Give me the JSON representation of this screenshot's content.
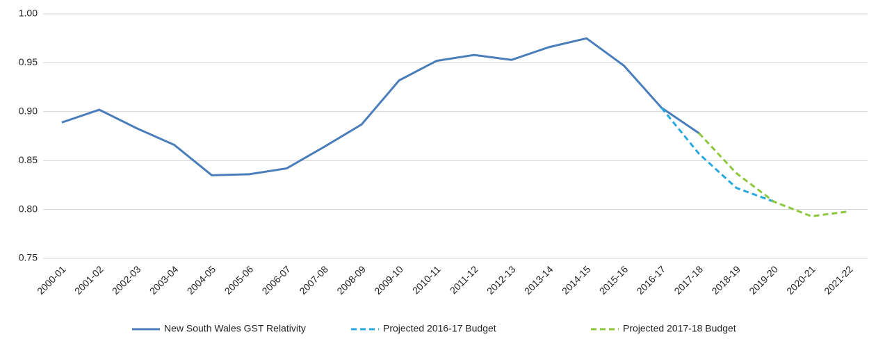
{
  "chart_data": {
    "type": "line",
    "categories": [
      "2000-01",
      "2001-02",
      "2002-03",
      "2003-04",
      "2004-05",
      "2005-06",
      "2006-07",
      "2007-08",
      "2008-09",
      "2009-10",
      "2010-11",
      "2011-12",
      "2012-13",
      "2013-14",
      "2014-15",
      "2015-16",
      "2016-17",
      "2017-18",
      "2018-19",
      "2019-20",
      "2020-21",
      "2021-22"
    ],
    "series": [
      {
        "name": "New South Wales GST Relativity",
        "color": "#4a7ebb",
        "dashed": false,
        "values": [
          0.889,
          0.902,
          0.883,
          0.866,
          0.835,
          0.836,
          0.842,
          0.864,
          0.887,
          0.932,
          0.952,
          0.958,
          0.953,
          0.966,
          0.975,
          0.947,
          0.904,
          0.878,
          null,
          null,
          null,
          null
        ]
      },
      {
        "name": "Projected 2016-17 Budget",
        "color": "#29a8e0",
        "dashed": true,
        "values": [
          null,
          null,
          null,
          null,
          null,
          null,
          null,
          null,
          null,
          null,
          null,
          null,
          null,
          null,
          null,
          null,
          0.904,
          0.857,
          0.822,
          0.808,
          null,
          null
        ]
      },
      {
        "name": "Projected 2017-18 Budget",
        "color": "#8dc63f",
        "dashed": true,
        "values": [
          null,
          null,
          null,
          null,
          null,
          null,
          null,
          null,
          null,
          null,
          null,
          null,
          null,
          null,
          null,
          null,
          null,
          0.878,
          0.837,
          0.808,
          0.793,
          0.798
        ]
      }
    ],
    "ylim": [
      0.75,
      1.0
    ],
    "yticks": [
      {
        "value": 0.75,
        "label": "0.75"
      },
      {
        "value": 0.8,
        "label": "0.80"
      },
      {
        "value": 0.85,
        "label": "0.85"
      },
      {
        "value": 0.9,
        "label": "0.90"
      },
      {
        "value": 0.95,
        "label": "0.95"
      },
      {
        "value": 1.0,
        "label": "1.00"
      }
    ],
    "grid": true,
    "legend": "bottom"
  }
}
